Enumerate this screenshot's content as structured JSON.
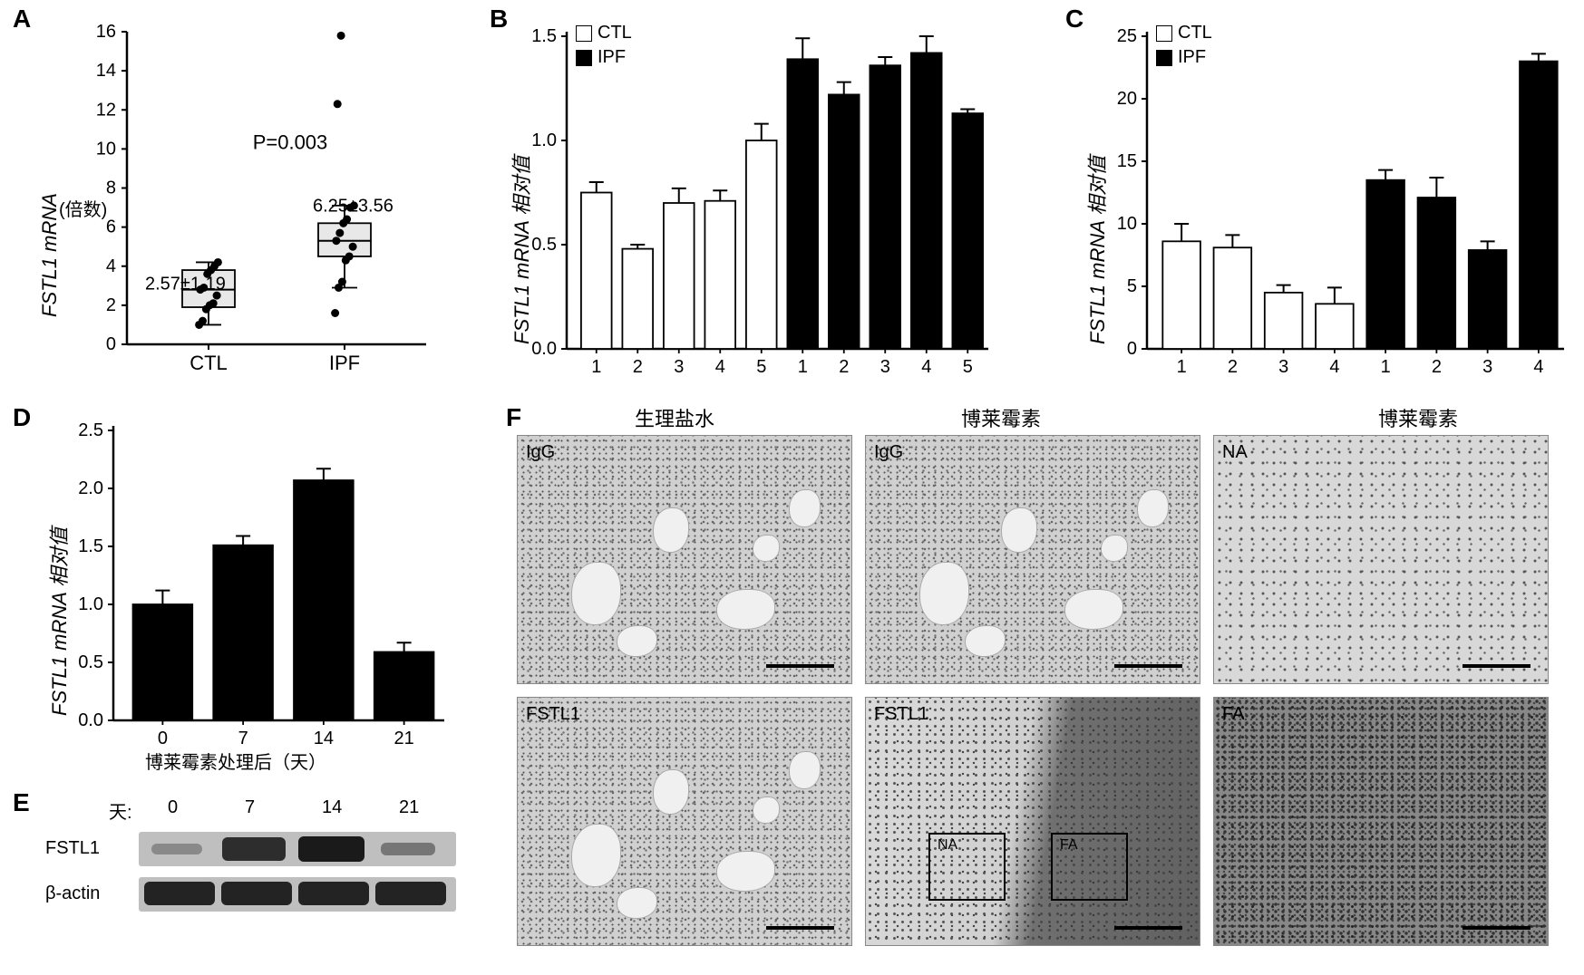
{
  "panelA": {
    "label": "A",
    "ylabel_italic": "FSTL1",
    "ylabel_plain": "mRNA",
    "ylabel_sub": "(倍数)",
    "ylim": [
      0,
      16
    ],
    "ytick_step": 2,
    "xticks": [
      "CTL",
      "IPF"
    ],
    "p_text": "P=0.003",
    "ctl_mean_sd": "2.57±1.19",
    "ipf_mean_sd": "6.25±3.56",
    "ctl_box": {
      "q1": 1.9,
      "med": 2.8,
      "q3": 3.8,
      "whisker_lo": 1.0,
      "whisker_hi": 4.2
    },
    "ipf_box": {
      "q1": 4.5,
      "med": 5.3,
      "q3": 6.2,
      "whisker_lo": 2.9,
      "whisker_hi": 7.1
    },
    "ctl_pts": [
      1.0,
      1.2,
      1.8,
      2.0,
      2.1,
      2.5,
      2.8,
      2.9,
      3.6,
      3.8,
      4.0,
      4.2
    ],
    "ipf_pts": [
      1.6,
      2.9,
      3.2,
      4.3,
      4.5,
      5.0,
      5.3,
      5.7,
      6.2,
      6.4,
      7.0,
      7.1,
      12.3,
      15.8
    ],
    "box_fill": "#e8e8e8",
    "pt_color": "#000000"
  },
  "panelB": {
    "label": "B",
    "ylabel_italic": "FSTL1",
    "ylabel_plain": "mRNA 相对值",
    "ylim": [
      0.0,
      1.5
    ],
    "yticks": [
      0.0,
      0.5,
      1.0,
      1.5
    ],
    "legend": [
      {
        "name": "CTL",
        "fill": "#ffffff"
      },
      {
        "name": "IPF",
        "fill": "#000000"
      }
    ],
    "bars": [
      {
        "x": "1",
        "v": 0.75,
        "err": 0.05,
        "g": "CTL"
      },
      {
        "x": "2",
        "v": 0.48,
        "err": 0.02,
        "g": "CTL"
      },
      {
        "x": "3",
        "v": 0.7,
        "err": 0.07,
        "g": "CTL"
      },
      {
        "x": "4",
        "v": 0.71,
        "err": 0.05,
        "g": "CTL"
      },
      {
        "x": "5",
        "v": 1.0,
        "err": 0.08,
        "g": "CTL"
      },
      {
        "x": "1",
        "v": 1.39,
        "err": 0.1,
        "g": "IPF"
      },
      {
        "x": "2",
        "v": 1.22,
        "err": 0.06,
        "g": "IPF"
      },
      {
        "x": "3",
        "v": 1.36,
        "err": 0.04,
        "g": "IPF"
      },
      {
        "x": "4",
        "v": 1.42,
        "err": 0.08,
        "g": "IPF"
      },
      {
        "x": "5",
        "v": 1.13,
        "err": 0.02,
        "g": "IPF"
      }
    ]
  },
  "panelC": {
    "label": "C",
    "ylabel_italic": "FSTL1",
    "ylabel_plain": "mRNA 相对值",
    "ylim": [
      0,
      25
    ],
    "ytick_step": 5,
    "legend": [
      {
        "name": "CTL",
        "fill": "#ffffff"
      },
      {
        "name": "IPF",
        "fill": "#000000"
      }
    ],
    "bars": [
      {
        "x": "1",
        "v": 8.6,
        "err": 1.4,
        "g": "CTL"
      },
      {
        "x": "2",
        "v": 8.1,
        "err": 1.0,
        "g": "CTL"
      },
      {
        "x": "3",
        "v": 4.5,
        "err": 0.6,
        "g": "CTL"
      },
      {
        "x": "4",
        "v": 3.6,
        "err": 1.3,
        "g": "CTL"
      },
      {
        "x": "1",
        "v": 13.5,
        "err": 0.8,
        "g": "IPF"
      },
      {
        "x": "2",
        "v": 12.1,
        "err": 1.6,
        "g": "IPF"
      },
      {
        "x": "3",
        "v": 7.9,
        "err": 0.7,
        "g": "IPF"
      },
      {
        "x": "4",
        "v": 23.0,
        "err": 0.6,
        "g": "IPF"
      }
    ]
  },
  "panelD": {
    "label": "D",
    "ylabel_italic": "FSTL1",
    "ylabel_plain": "mRNA 相对值",
    "ylim": [
      0,
      2.5
    ],
    "ytick_step": 0.5,
    "xlabel": "博莱霉素处理后（天）",
    "bars": [
      {
        "x": "0",
        "v": 1.0,
        "err": 0.12
      },
      {
        "x": "7",
        "v": 1.51,
        "err": 0.08
      },
      {
        "x": "14",
        "v": 2.07,
        "err": 0.1
      },
      {
        "x": "21",
        "v": 0.59,
        "err": 0.08
      }
    ],
    "bar_fill": "#000000"
  },
  "panelE": {
    "label": "E",
    "day_label": "天:",
    "days": [
      "0",
      "7",
      "14",
      "21"
    ],
    "rows": [
      "FSTL1",
      "β-actin"
    ],
    "fstl1_intensity": [
      0.1,
      0.85,
      1.0,
      0.25
    ],
    "actin_intensity": [
      1.0,
      1.0,
      1.0,
      1.0
    ],
    "band_color": "#1a1a1a",
    "bg_color": "#bfbfbf"
  },
  "panelF": {
    "label": "F",
    "col_headers": [
      "生理盐水",
      "博莱霉素",
      ""
    ],
    "right_header": "博莱霉素",
    "cells": [
      {
        "row": 0,
        "col": 0,
        "lbl": "IgG",
        "kind": "grainy",
        "vacs": true
      },
      {
        "row": 0,
        "col": 1,
        "lbl": "IgG",
        "kind": "grainy",
        "vacs": true
      },
      {
        "row": 0,
        "col": 2,
        "lbl": "NA",
        "kind": "light",
        "vacs": false
      },
      {
        "row": 1,
        "col": 0,
        "lbl": "FSTL1",
        "kind": "grainy",
        "vacs": true
      },
      {
        "row": 1,
        "col": 1,
        "lbl": "FSTL1",
        "kind": "mixed",
        "vacs": false,
        "insets": true
      },
      {
        "row": 1,
        "col": 2,
        "lbl": "FA",
        "kind": "dense",
        "vacs": false
      }
    ],
    "inset_labels": [
      "NA",
      "FA"
    ]
  }
}
